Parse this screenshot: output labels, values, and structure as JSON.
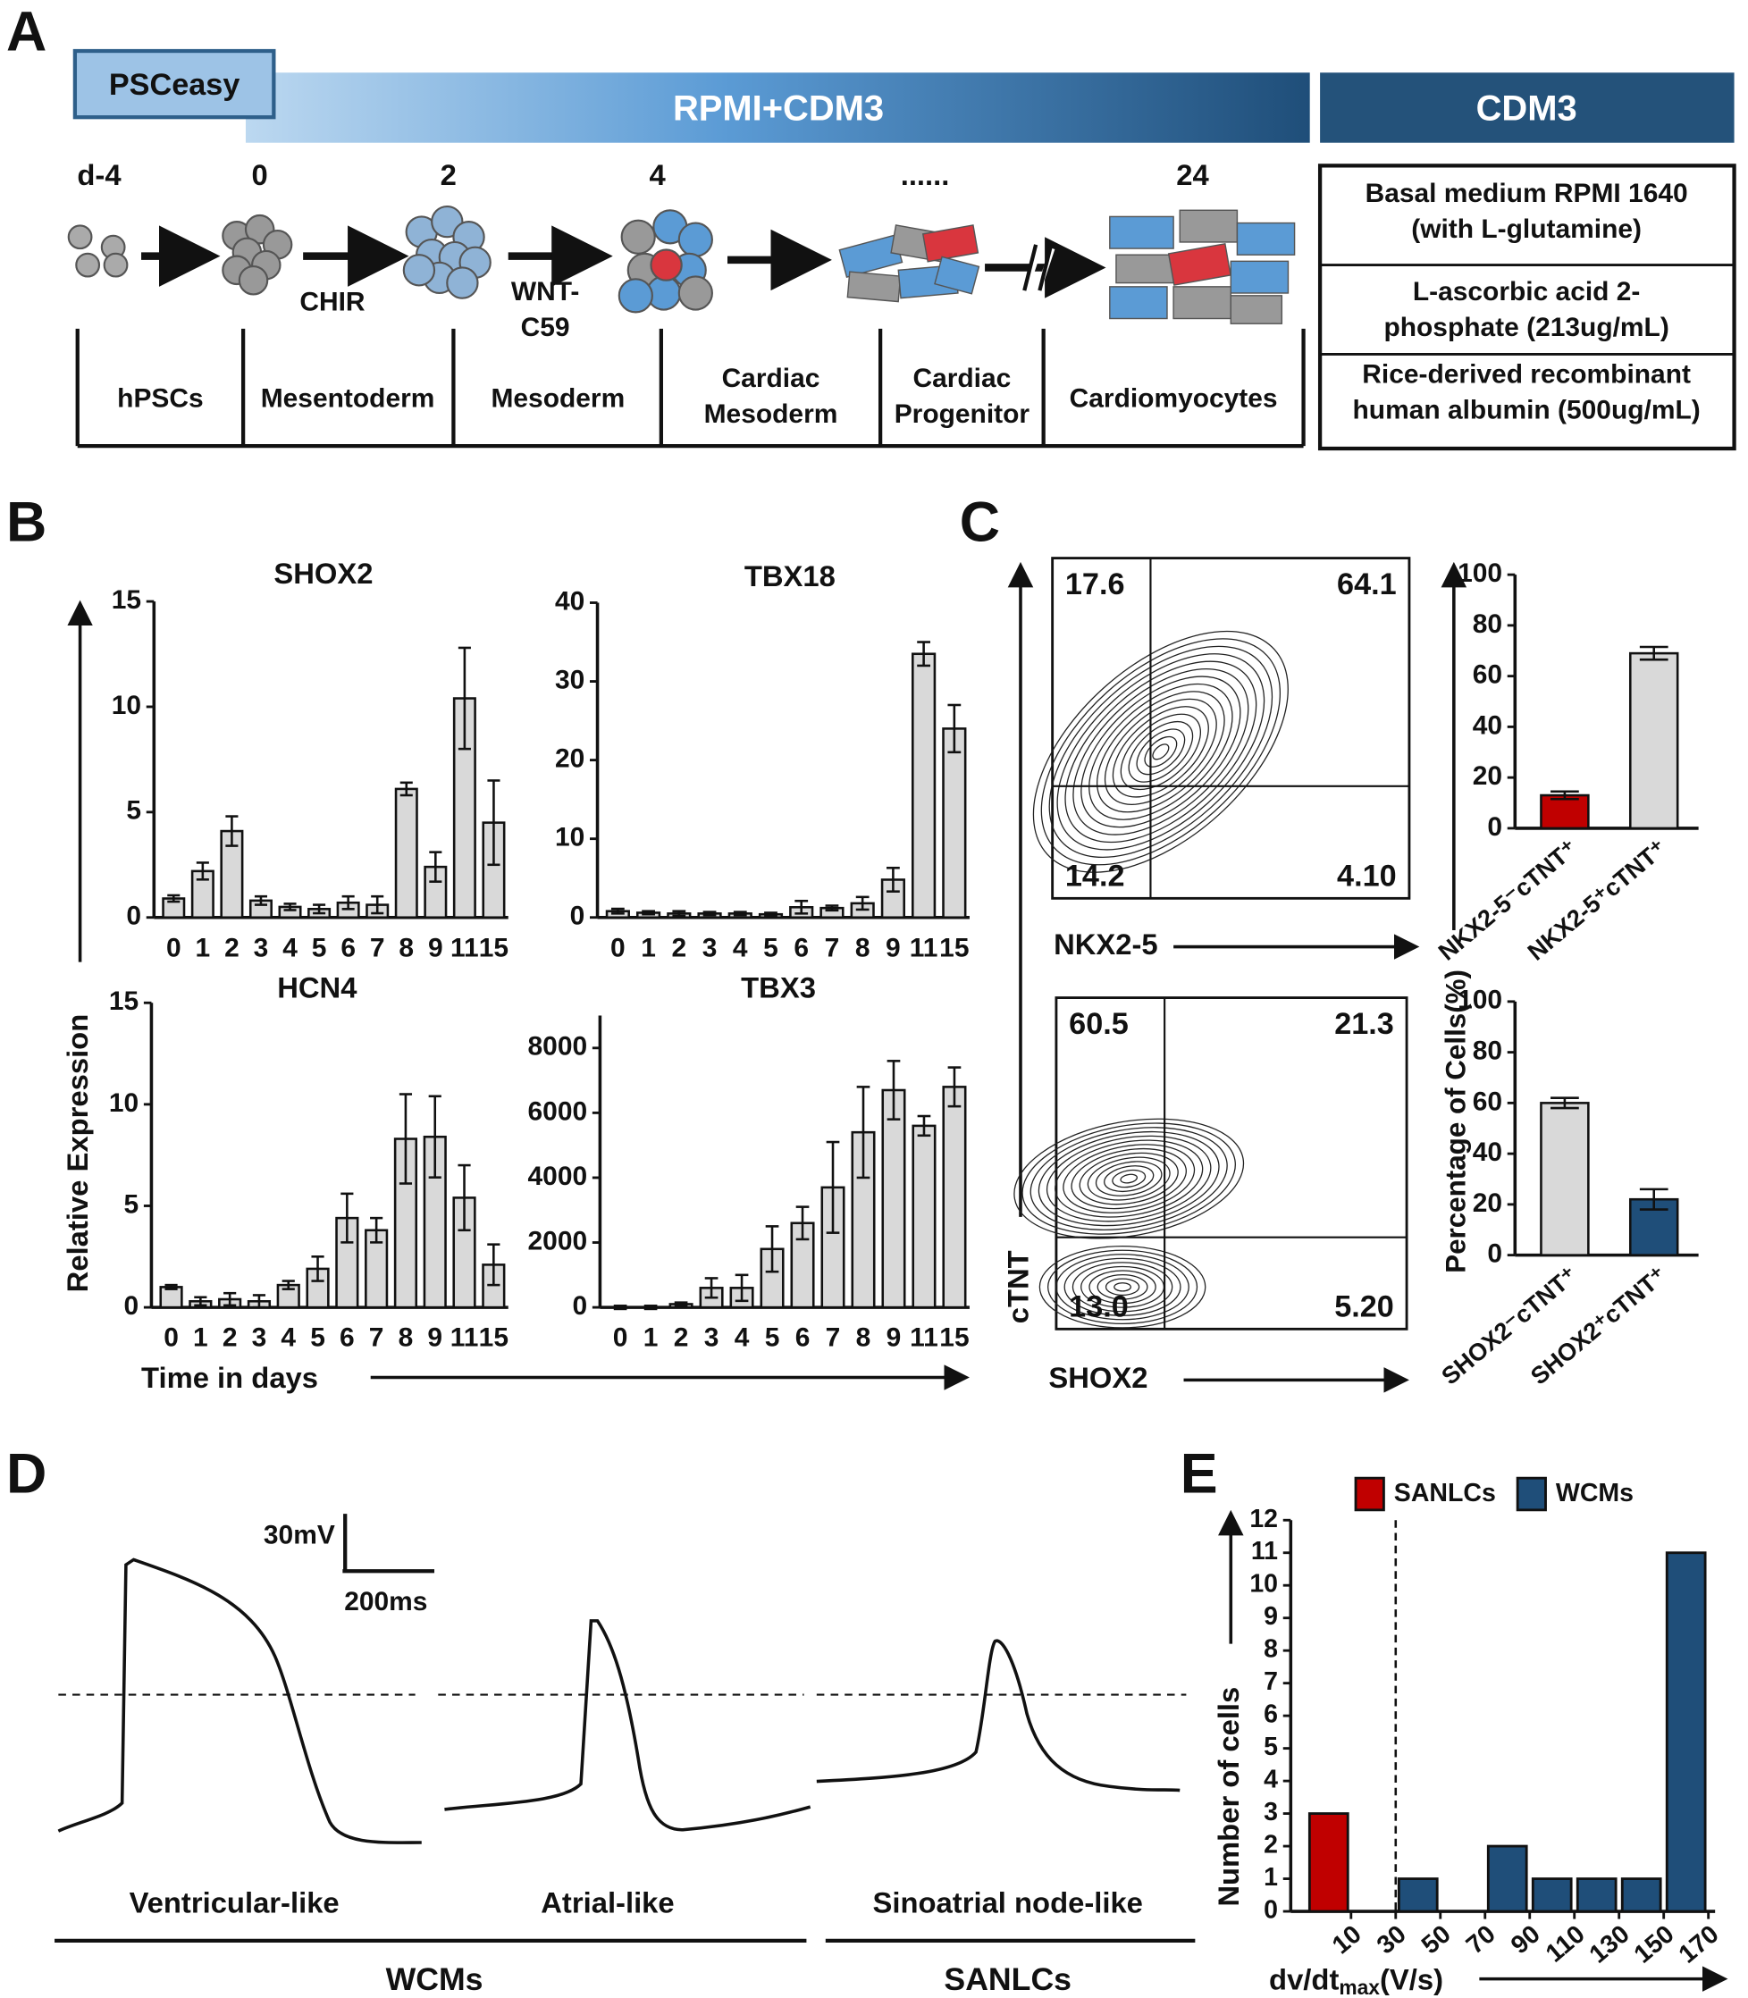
{
  "panel_labels": [
    "A",
    "B",
    "C",
    "D",
    "E"
  ],
  "protocol": {
    "phases": [
      "PSCeasy",
      "RPMI+CDM3",
      "CDM3"
    ],
    "days": [
      "d-4",
      "0",
      "2",
      "4",
      "......",
      "24"
    ],
    "small_molecules": [
      [
        "CHIR"
      ],
      [
        "WNT-",
        "C59"
      ]
    ],
    "stages": [
      [
        "hPSCs"
      ],
      [
        "Mesentoderm"
      ],
      [
        "Mesoderm"
      ],
      [
        "Cardiac",
        "Mesoderm"
      ],
      [
        "Cardiac",
        "Progenitor"
      ],
      [
        "Cardiomyocytes"
      ]
    ],
    "medium_components": [
      [
        "Basal medium RPMI 1640",
        "(with L-glutamine)"
      ],
      [
        "L-ascorbic acid 2-",
        "phosphate (213ug/mL)"
      ],
      [
        "Rice-derived recombinant",
        "human albumin (500ug/mL)"
      ]
    ]
  },
  "panel_b": {
    "y_label": "Relative Expression",
    "x_label": "Time in  days"
  },
  "flow_cytometry": {
    "y_label": "cTNT",
    "plots": [
      {
        "x_label": "NKX2-5",
        "quadrants": [
          "17.6",
          "64.1",
          "14.2",
          "4.10"
        ]
      },
      {
        "x_label": "SHOX2",
        "quadrants": [
          "60.5",
          "21.3",
          "13.0",
          "5.20"
        ]
      }
    ],
    "bar_y_label": "Percentage of Cells(%)"
  },
  "action_potentials": {
    "scale": [
      "30mV",
      "200ms"
    ],
    "traces": [
      "Ventricular-like",
      "Atrial-like",
      "Sinoatrial node-like"
    ],
    "groups": [
      "WCMs",
      "SANLCs"
    ]
  },
  "chart_data": [
    {
      "type": "bar",
      "title": "SHOX2",
      "categories": [
        "0",
        "1",
        "2",
        "3",
        "4",
        "5",
        "6",
        "7",
        "8",
        "9",
        "11",
        "15"
      ],
      "values": [
        0.9,
        2.2,
        4.1,
        0.8,
        0.5,
        0.4,
        0.7,
        0.6,
        6.1,
        2.4,
        10.4,
        4.5
      ],
      "errors": [
        0.15,
        0.4,
        0.7,
        0.2,
        0.15,
        0.2,
        0.3,
        0.4,
        0.3,
        0.7,
        2.4,
        2.0
      ],
      "color": "#d9d9d9",
      "ylim": [
        0,
        15
      ],
      "yticks": [
        0,
        5,
        10,
        15
      ]
    },
    {
      "type": "bar",
      "title": "TBX18",
      "categories": [
        "0",
        "1",
        "2",
        "3",
        "4",
        "5",
        "6",
        "7",
        "8",
        "9",
        "11",
        "15"
      ],
      "values": [
        0.8,
        0.6,
        0.5,
        0.5,
        0.5,
        0.4,
        1.3,
        1.2,
        1.8,
        4.8,
        33.5,
        24
      ],
      "errors": [
        0.3,
        0.2,
        0.3,
        0.2,
        0.2,
        0.2,
        0.8,
        0.3,
        0.8,
        1.5,
        1.5,
        3
      ],
      "color": "#d9d9d9",
      "ylim": [
        0,
        40
      ],
      "yticks": [
        0,
        10,
        20,
        30,
        40
      ]
    },
    {
      "type": "bar",
      "title": "HCN4",
      "categories": [
        "0",
        "1",
        "2",
        "3",
        "4",
        "5",
        "6",
        "7",
        "8",
        "9",
        "11",
        "15"
      ],
      "values": [
        1.0,
        0.3,
        0.4,
        0.3,
        1.1,
        1.9,
        4.4,
        3.8,
        8.3,
        8.4,
        5.4,
        2.1
      ],
      "errors": [
        0.1,
        0.2,
        0.3,
        0.3,
        0.2,
        0.6,
        1.2,
        0.6,
        2.2,
        2.0,
        1.6,
        1.0
      ],
      "color": "#d9d9d9",
      "ylim": [
        0,
        15
      ],
      "yticks": [
        0,
        5,
        10,
        15
      ]
    },
    {
      "type": "bar",
      "title": "TBX3",
      "categories": [
        "0",
        "1",
        "2",
        "3",
        "4",
        "5",
        "6",
        "7",
        "8",
        "9",
        "11",
        "15"
      ],
      "values": [
        0,
        0,
        100,
        600,
        600,
        1800,
        2600,
        3700,
        5400,
        6700,
        5600,
        6800
      ],
      "errors": [
        50,
        50,
        50,
        300,
        400,
        700,
        500,
        1400,
        1400,
        900,
        300,
        600
      ],
      "color": "#d9d9d9",
      "ylim": [
        0,
        9000
      ],
      "yticks": [
        0,
        2000,
        4000,
        6000,
        8000
      ]
    },
    {
      "type": "bar",
      "categories": [
        "NKX2-5⁻cTNT⁺",
        "NKX2-5⁺cTNT⁺"
      ],
      "values": [
        13,
        69
      ],
      "errors": [
        1.5,
        2.5
      ],
      "colors": [
        "#c00000",
        "#d9d9d9"
      ],
      "ylim": [
        0,
        100
      ],
      "yticks": [
        0,
        20,
        40,
        60,
        80,
        100
      ]
    },
    {
      "type": "bar",
      "categories": [
        "SHOX2⁻cTNT⁺",
        "SHOX2⁺cTNT⁺"
      ],
      "values": [
        60,
        22
      ],
      "errors": [
        2,
        4
      ],
      "colors": [
        "#d9d9d9",
        "#1f4e79"
      ],
      "ylim": [
        0,
        100
      ],
      "yticks": [
        0,
        20,
        40,
        60,
        80,
        100
      ]
    },
    {
      "type": "histogram",
      "bins": [
        -10,
        10,
        30,
        50,
        70,
        90,
        110,
        130,
        150,
        170
      ],
      "series": [
        {
          "name": "SANLCs",
          "color": "#c00000",
          "values": [
            3,
            0,
            0,
            0,
            0,
            0,
            0,
            0,
            0
          ]
        },
        {
          "name": "WCMs",
          "color": "#1f4e79",
          "values": [
            0,
            0,
            1,
            0,
            2,
            1,
            1,
            1,
            11
          ]
        }
      ],
      "xlim": [
        -17,
        173
      ],
      "xticks": [
        10,
        30,
        50,
        70,
        90,
        110,
        130,
        150,
        170
      ],
      "ylim": [
        0,
        12
      ],
      "yticks": [
        0,
        1,
        2,
        3,
        4,
        5,
        6,
        7,
        8,
        9,
        10,
        11,
        12
      ],
      "threshold": 30,
      "x_label": {
        "main": "dv/dt",
        "sub": "max",
        "tail": "(V/s)"
      },
      "y_label": "Number of cells"
    }
  ]
}
